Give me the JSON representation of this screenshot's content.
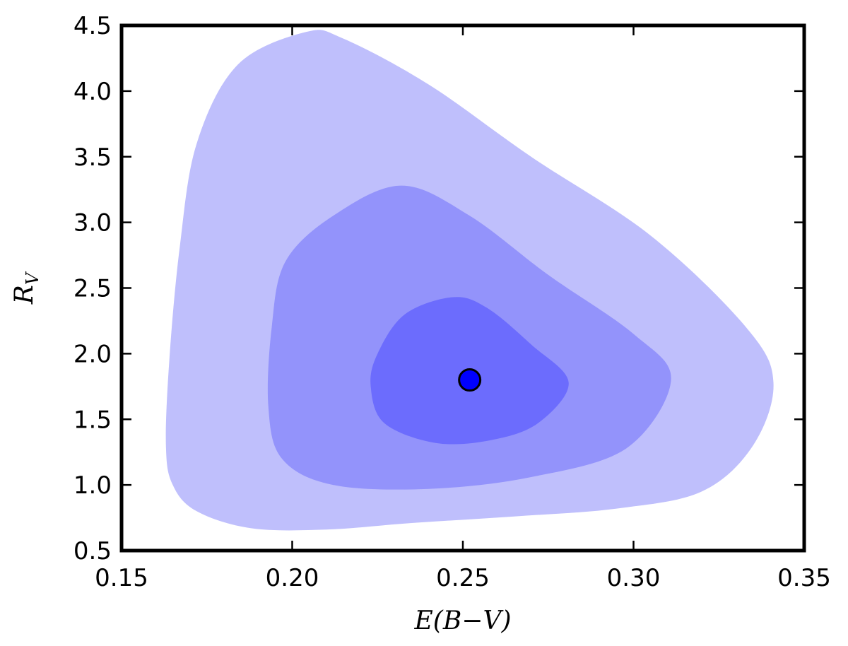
{
  "chart_data": {
    "type": "contour",
    "title": "",
    "xlabel": {
      "prefix": "E(B",
      "dash": "−",
      "suffix": "V)"
    },
    "ylabel": {
      "main": "R",
      "sub": "V"
    },
    "xlim": [
      0.15,
      0.35
    ],
    "ylim": [
      0.5,
      4.5
    ],
    "xticks": [
      0.15,
      0.2,
      0.25,
      0.3,
      0.35
    ],
    "xtick_labels": [
      "0.15",
      "0.20",
      "0.25",
      "0.30",
      "0.35"
    ],
    "yticks": [
      0.5,
      1.0,
      1.5,
      2.0,
      2.5,
      3.0,
      3.5,
      4.0,
      4.5
    ],
    "ytick_labels": [
      "0.5",
      "1.0",
      "1.5",
      "2.0",
      "2.5",
      "3.0",
      "3.5",
      "4.0",
      "4.5"
    ],
    "grid": false,
    "best_fit": {
      "x": 0.252,
      "y": 1.8,
      "color": "#0000ff"
    },
    "regions": [
      {
        "level": "outer",
        "color": "#bfbffc",
        "points": [
          [
            0.204,
            4.45
          ],
          [
            0.184,
            4.2
          ],
          [
            0.172,
            3.6
          ],
          [
            0.167,
            2.8
          ],
          [
            0.164,
            1.95
          ],
          [
            0.163,
            1.3
          ],
          [
            0.165,
            1.0
          ],
          [
            0.172,
            0.8
          ],
          [
            0.188,
            0.67
          ],
          [
            0.21,
            0.66
          ],
          [
            0.235,
            0.71
          ],
          [
            0.265,
            0.76
          ],
          [
            0.295,
            0.82
          ],
          [
            0.32,
            0.95
          ],
          [
            0.335,
            1.3
          ],
          [
            0.341,
            1.78
          ],
          [
            0.333,
            2.2
          ],
          [
            0.305,
            2.9
          ],
          [
            0.27,
            3.5
          ],
          [
            0.24,
            4.05
          ],
          [
            0.215,
            4.4
          ]
        ]
      },
      {
        "level": "middle",
        "color": "#9393fb",
        "points": [
          [
            0.232,
            3.28
          ],
          [
            0.212,
            3.05
          ],
          [
            0.198,
            2.7
          ],
          [
            0.194,
            2.2
          ],
          [
            0.193,
            1.6
          ],
          [
            0.197,
            1.2
          ],
          [
            0.212,
            1.0
          ],
          [
            0.24,
            0.97
          ],
          [
            0.27,
            1.06
          ],
          [
            0.298,
            1.28
          ],
          [
            0.311,
            1.8
          ],
          [
            0.3,
            2.15
          ],
          [
            0.275,
            2.6
          ],
          [
            0.252,
            3.05
          ]
        ]
      },
      {
        "level": "inner",
        "color": "#6c6cfd",
        "points": [
          [
            0.247,
            2.43
          ],
          [
            0.233,
            2.3
          ],
          [
            0.225,
            2.0
          ],
          [
            0.223,
            1.75
          ],
          [
            0.227,
            1.47
          ],
          [
            0.242,
            1.32
          ],
          [
            0.258,
            1.34
          ],
          [
            0.272,
            1.47
          ],
          [
            0.281,
            1.78
          ],
          [
            0.27,
            2.07
          ],
          [
            0.257,
            2.35
          ]
        ]
      }
    ]
  }
}
